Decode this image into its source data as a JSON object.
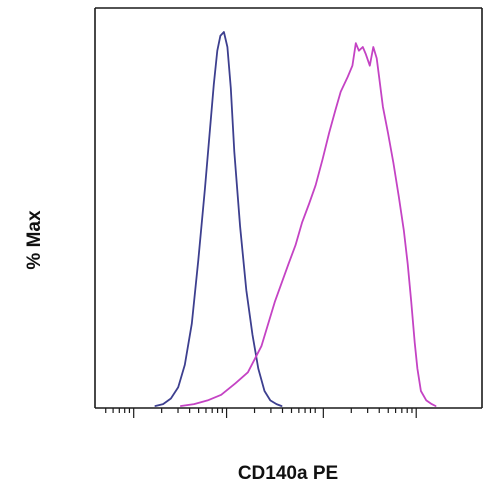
{
  "chart_data": {
    "type": "line",
    "title": "",
    "xlabel": "CD140a PE",
    "ylabel": "% Max",
    "xlim": [
      0,
      100
    ],
    "ylim": [
      0,
      100
    ],
    "grid": false,
    "legend": "none",
    "x_major_ticks": [
      10,
      34,
      59,
      83
    ],
    "series": [
      {
        "color": "#3d3f8f",
        "x": [
          15.6,
          17.6,
          19.6,
          21.5,
          23.2,
          25.0,
          26.7,
          28.4,
          29.8,
          30.7,
          31.6,
          32.4,
          33.3,
          34.2,
          35.1,
          36.0,
          37.5,
          39.1,
          40.7,
          42.2,
          43.8,
          45.3,
          46.9,
          48.2
        ],
        "y": [
          0,
          0.5,
          2,
          5,
          11,
          22,
          39,
          58,
          75,
          86,
          95,
          99,
          100,
          96,
          85,
          68,
          48,
          31,
          19,
          10,
          4,
          1.5,
          0.5,
          0
        ]
      },
      {
        "color": "#c443c4",
        "x": [
          22.2,
          25.6,
          29.1,
          32.6,
          36.2,
          39.5,
          43.0,
          46.5,
          50.0,
          51.8,
          53.5,
          55.3,
          57.0,
          58.8,
          60.5,
          62.1,
          63.5,
          65.3,
          66.5,
          67.4,
          68.2,
          69.2,
          70.0,
          71.0,
          71.9,
          72.8,
          73.4,
          74.4,
          75.7,
          77.1,
          78.5,
          79.8,
          80.8,
          81.7,
          82.6,
          83.3,
          84.2,
          85.6,
          87.0,
          88.0
        ],
        "y": [
          0,
          0.5,
          1.5,
          3,
          6,
          9,
          16,
          28,
          38,
          43,
          49,
          54,
          59,
          66,
          73,
          79,
          84,
          88,
          91,
          97,
          95,
          96,
          94,
          91,
          96,
          93,
          88,
          80,
          73,
          65,
          56,
          47,
          38,
          28,
          17,
          10,
          4,
          1.5,
          0.5,
          0
        ]
      }
    ]
  }
}
